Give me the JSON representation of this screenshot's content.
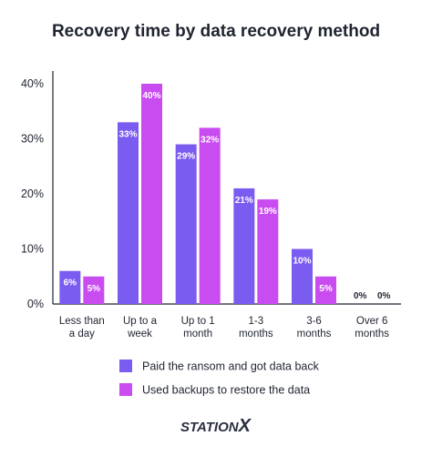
{
  "chart_data": {
    "type": "bar",
    "title": "Recovery time by data recovery method",
    "categories": [
      [
        "Less than",
        "a day"
      ],
      [
        "Up to a",
        "week"
      ],
      [
        "Up to 1",
        "month"
      ],
      [
        "1-3",
        "months"
      ],
      [
        "3-6",
        "months"
      ],
      [
        "Over 6",
        "months"
      ]
    ],
    "series": [
      {
        "name": "Paid the ransom and got data back",
        "values": [
          6,
          33,
          29,
          21,
          10,
          0
        ],
        "labels": [
          "6%",
          "33%",
          "29%",
          "21%",
          "10%",
          "0%"
        ],
        "color": "#7b5cf0"
      },
      {
        "name": "Used backups to restore the data",
        "values": [
          5,
          40,
          32,
          19,
          5,
          0
        ],
        "labels": [
          "5%",
          "40%",
          "32%",
          "19%",
          "5%",
          "0%"
        ],
        "color": "#c94cf0"
      }
    ],
    "yticks": [
      "0%",
      "10%",
      "20%",
      "30%",
      "40%"
    ],
    "ylim": [
      0,
      40
    ],
    "grid": false,
    "legend": "bottom"
  },
  "logo": {
    "text": "STATIONX",
    "color": "#2a3040"
  }
}
